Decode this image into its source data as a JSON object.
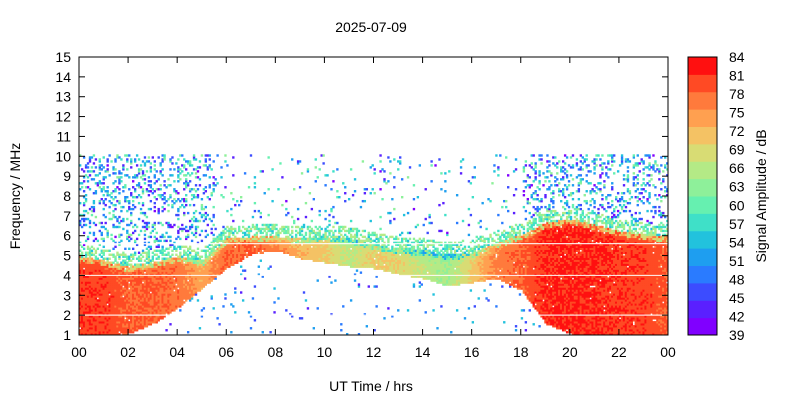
{
  "chart_data": {
    "type": "heatmap",
    "title": "2025-07-09",
    "xlabel": "UT Time / hrs",
    "ylabel": "Frequency / MHz",
    "colorbar_label": "Signal Amplitude / dB",
    "xlim": [
      0,
      24
    ],
    "ylim": [
      1,
      15
    ],
    "x_ticks": [
      "00",
      "02",
      "04",
      "06",
      "08",
      "10",
      "12",
      "14",
      "16",
      "18",
      "20",
      "22",
      "00"
    ],
    "y_ticks": [
      "1",
      "2",
      "3",
      "4",
      "5",
      "6",
      "7",
      "8",
      "9",
      "10",
      "11",
      "12",
      "13",
      "14",
      "15"
    ],
    "colorbar": {
      "range": [
        39,
        84
      ],
      "ticks": [
        "84",
        "81",
        "78",
        "75",
        "72",
        "69",
        "66",
        "63",
        "60",
        "57",
        "54",
        "51",
        "48",
        "45",
        "42",
        "39"
      ],
      "colors": [
        "#8000ff",
        "#5a20ff",
        "#3c4cff",
        "#2a7bff",
        "#1e9ef0",
        "#22c2dd",
        "#3fe0c8",
        "#66f0b0",
        "#8ef09a",
        "#b4ea86",
        "#d8dc74",
        "#f4c264",
        "#ffa050",
        "#ff7a3c",
        "#ff4a24",
        "#ff1010"
      ]
    },
    "grid": false,
    "intensity_profile": {
      "description_hours": [
        0,
        1,
        2,
        3,
        4,
        5,
        6,
        7,
        8,
        9,
        10,
        11,
        12,
        13,
        14,
        15,
        16,
        17,
        18,
        19,
        20,
        21,
        22,
        23,
        24
      ],
      "strong_top_mhz": [
        4.9,
        4.7,
        4.4,
        4.6,
        4.9,
        4.7,
        5.8,
        5.9,
        5.9,
        5.8,
        5.9,
        5.8,
        5.5,
        5.3,
        5.2,
        5.0,
        5.1,
        5.6,
        6.0,
        6.6,
        6.8,
        6.5,
        6.2,
        6.0,
        5.9
      ],
      "strong_bottom_mhz": [
        1.0,
        1.0,
        1.0,
        1.5,
        2.3,
        3.3,
        4.3,
        5.0,
        5.2,
        4.8,
        4.6,
        4.4,
        4.3,
        4.0,
        3.8,
        3.4,
        3.6,
        3.8,
        3.2,
        1.5,
        1.0,
        1.0,
        1.0,
        1.0,
        1.0
      ],
      "peak_db": [
        82,
        82,
        80,
        80,
        79,
        75,
        80,
        80,
        78,
        74,
        72,
        68,
        72,
        71,
        68,
        66,
        72,
        78,
        80,
        83,
        83,
        83,
        82,
        82,
        80
      ]
    }
  }
}
